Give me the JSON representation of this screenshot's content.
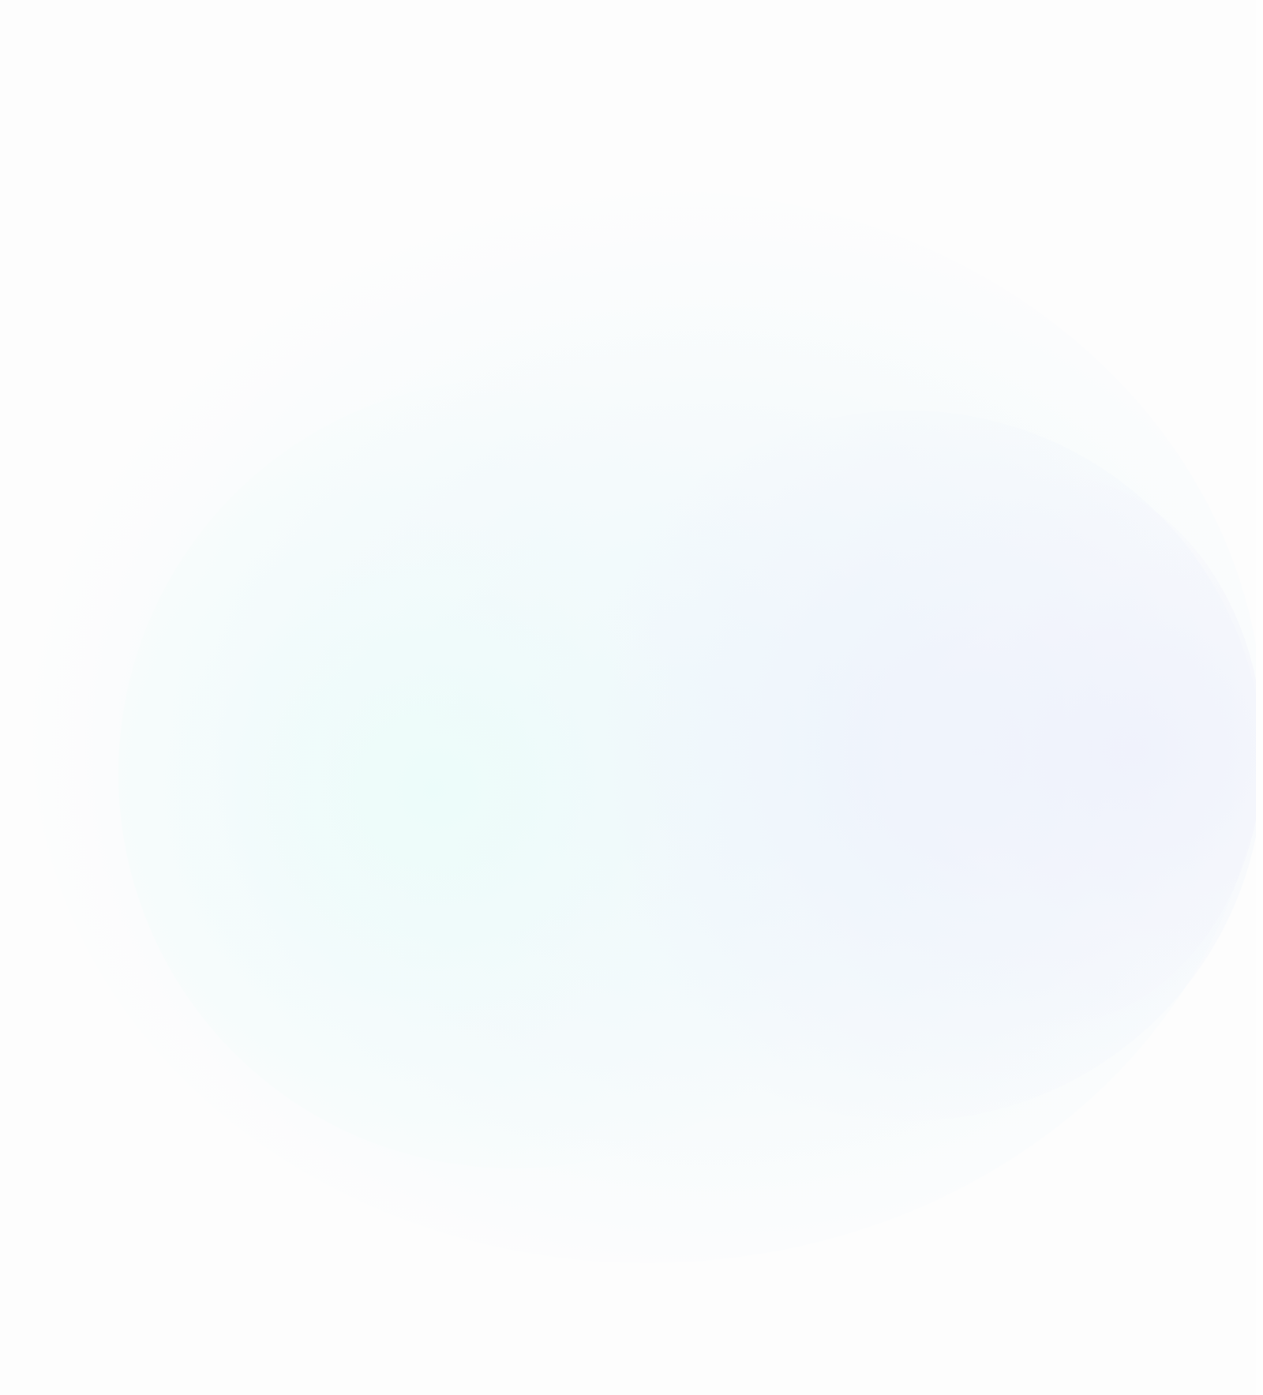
{
  "background": {
    "base_color": "#fdfdfd",
    "accent_colors": [
      "#ecfcfa",
      "#ebf2fc",
      "#f0f2fc"
    ]
  }
}
